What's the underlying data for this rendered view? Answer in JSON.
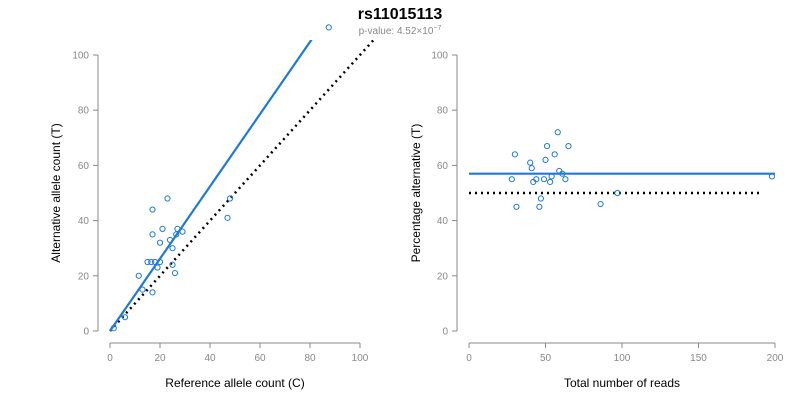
{
  "header": {
    "title": "rs11015113",
    "pvalue_label": "p-value: 4.52×10",
    "pvalue_exponent": "−7"
  },
  "colors": {
    "points": "#1e7bd4",
    "fit_line": "#1e7bd4",
    "reference_line": "#000000",
    "axis": "#888888"
  },
  "chart_data": [
    {
      "type": "scatter",
      "xlabel": "Reference allele count (C)",
      "ylabel": "Alternative allele count (T)",
      "xlim": [
        0,
        100
      ],
      "ylim": [
        0,
        100
      ],
      "xticks": [
        0,
        20,
        40,
        60,
        80,
        100
      ],
      "yticks": [
        0,
        20,
        40,
        60,
        80,
        100
      ],
      "grid": false,
      "points": [
        [
          1.5,
          1
        ],
        [
          6,
          5
        ],
        [
          11.5,
          20
        ],
        [
          13,
          15
        ],
        [
          15,
          25
        ],
        [
          16.5,
          25
        ],
        [
          17,
          14
        ],
        [
          17,
          35
        ],
        [
          17,
          44
        ],
        [
          18,
          25
        ],
        [
          19,
          23
        ],
        [
          20,
          32
        ],
        [
          20,
          25
        ],
        [
          21,
          37
        ],
        [
          23,
          48
        ],
        [
          24,
          33
        ],
        [
          25,
          30
        ],
        [
          25,
          24
        ],
        [
          26,
          21
        ],
        [
          26.5,
          35
        ],
        [
          27,
          37
        ],
        [
          29,
          36
        ],
        [
          47,
          41
        ],
        [
          48,
          48
        ],
        [
          87.5,
          110
        ]
      ],
      "fit_line": [
        [
          0,
          0
        ],
        [
          84,
          110
        ]
      ],
      "reference_line": [
        [
          0,
          0
        ],
        [
          110,
          110
        ]
      ]
    },
    {
      "type": "scatter",
      "xlabel": "Total number of reads",
      "ylabel": "Percentage alternative (T)",
      "xlim": [
        0,
        200
      ],
      "ylim": [
        0,
        100
      ],
      "xticks": [
        0,
        50,
        100,
        150,
        200
      ],
      "yticks": [
        0,
        20,
        40,
        60,
        80,
        100
      ],
      "grid": false,
      "points": [
        [
          28,
          55
        ],
        [
          30,
          64
        ],
        [
          31,
          45
        ],
        [
          40,
          61
        ],
        [
          41,
          59
        ],
        [
          42,
          54
        ],
        [
          44,
          55
        ],
        [
          46,
          45
        ],
        [
          47,
          48
        ],
        [
          49,
          55
        ],
        [
          50,
          62
        ],
        [
          51,
          67
        ],
        [
          53,
          54
        ],
        [
          54,
          56
        ],
        [
          56,
          64
        ],
        [
          58,
          72
        ],
        [
          59,
          58
        ],
        [
          61,
          57
        ],
        [
          63,
          55
        ],
        [
          65,
          67
        ],
        [
          86,
          46
        ],
        [
          97,
          50
        ],
        [
          198,
          56
        ]
      ],
      "fit_line": [
        [
          0,
          57
        ],
        [
          200,
          57
        ]
      ],
      "reference_line": [
        [
          0,
          50
        ],
        [
          190,
          50
        ]
      ]
    }
  ]
}
